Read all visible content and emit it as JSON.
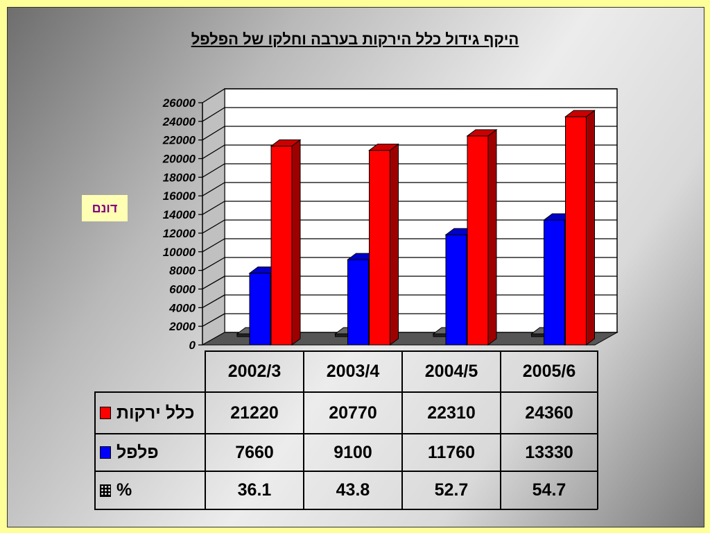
{
  "chart_data": {
    "type": "bar",
    "title": "היקף גידול כלל הירקות בערבה וחלקו של הפלפל",
    "ylabel": "דונם",
    "ylim": [
      0,
      26000
    ],
    "yticks": [
      "26000",
      "24000",
      "22000",
      "20000",
      "18000",
      "16000",
      "14000",
      "12000",
      "10000",
      "8000",
      "6000",
      "4000",
      "2000",
      "0"
    ],
    "categories": [
      "2002/3",
      "2003/4",
      "2004/5",
      "2005/6"
    ],
    "grid": true,
    "legend_position": "table-left",
    "series": [
      {
        "name": "כלל ירקות",
        "values": [
          21220,
          20770,
          22310,
          24360
        ],
        "color": "#ff0000"
      },
      {
        "name": "פלפל",
        "values": [
          7660,
          9100,
          11760,
          13330
        ],
        "color": "#0000ff"
      },
      {
        "name": "%",
        "values": [
          36.1,
          43.8,
          52.7,
          54.7
        ],
        "color": "#000000"
      }
    ],
    "table": {
      "rows": [
        {
          "label": "כלל ירקות",
          "values": [
            "21220",
            "20770",
            "22310",
            "24360"
          ],
          "color": "#ff0000"
        },
        {
          "label": "פלפל",
          "values": [
            "7660",
            "9100",
            "11760",
            "13330"
          ],
          "color": "#0000ff"
        },
        {
          "label": "%",
          "values": [
            "36.1",
            "43.8",
            "52.7",
            "54.7"
          ],
          "color": "#000000"
        }
      ]
    }
  }
}
